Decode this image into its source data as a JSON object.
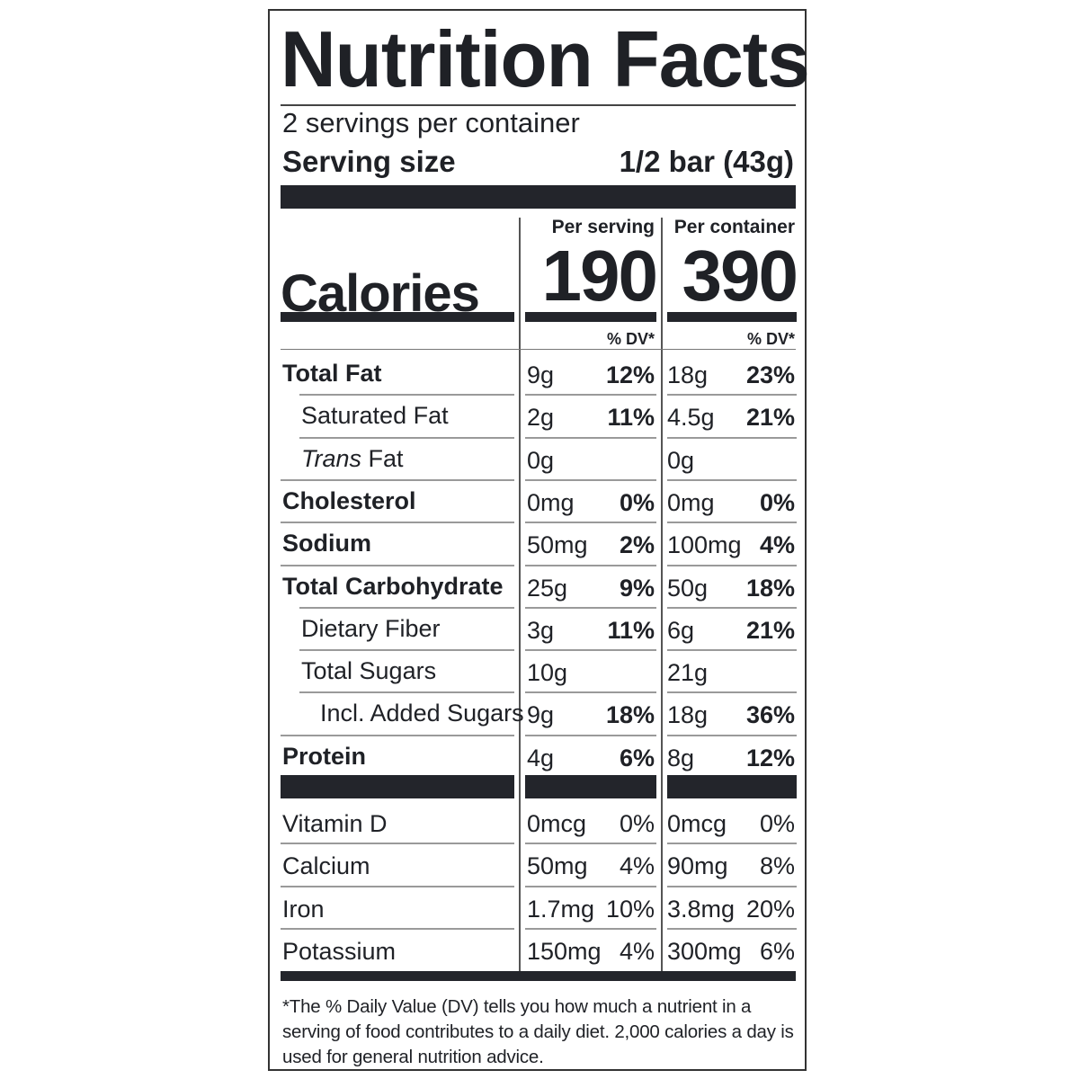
{
  "title": "Nutrition Facts",
  "servings_per_container": "2 servings per container",
  "serving_size_label": "Serving size",
  "serving_size_value": "1/2 bar (43g)",
  "columns": {
    "per_serving_label": "Per serving",
    "per_container_label": "Per container",
    "dv_label": "% DV*"
  },
  "calories": {
    "label": "Calories",
    "per_serving": "190",
    "per_container": "390"
  },
  "nutrients": [
    {
      "name": "Total Fat",
      "style": "bold",
      "indent": 0,
      "s_amt": "9g",
      "s_dv": "12%",
      "c_amt": "18g",
      "c_dv": "23%"
    },
    {
      "name": "Saturated Fat",
      "style": "normal",
      "indent": 1,
      "s_amt": "2g",
      "s_dv": "11%",
      "c_amt": "4.5g",
      "c_dv": "21%"
    },
    {
      "name_italic": "Trans",
      "name": " Fat",
      "style": "normal",
      "indent": 1,
      "s_amt": "0g",
      "s_dv": "",
      "c_amt": "0g",
      "c_dv": ""
    },
    {
      "name": "Cholesterol",
      "style": "bold",
      "indent": 0,
      "s_amt": "0mg",
      "s_dv": "0%",
      "c_amt": "0mg",
      "c_dv": "0%"
    },
    {
      "name": "Sodium",
      "style": "bold",
      "indent": 0,
      "s_amt": "50mg",
      "s_dv": "2%",
      "c_amt": "100mg",
      "c_dv": "4%"
    },
    {
      "name": "Total Carbohydrate",
      "style": "bold",
      "indent": 0,
      "s_amt": "25g",
      "s_dv": "9%",
      "c_amt": "50g",
      "c_dv": "18%"
    },
    {
      "name": "Dietary Fiber",
      "style": "normal",
      "indent": 1,
      "s_amt": "3g",
      "s_dv": "11%",
      "c_amt": "6g",
      "c_dv": "21%"
    },
    {
      "name": "Total Sugars",
      "style": "normal",
      "indent": 1,
      "s_amt": "10g",
      "s_dv": "",
      "c_amt": "21g",
      "c_dv": ""
    },
    {
      "name": "Incl. Added Sugars",
      "style": "normal",
      "indent": 2,
      "s_amt": "9g",
      "s_dv": "18%",
      "c_amt": "18g",
      "c_dv": "36%"
    },
    {
      "name": "Protein",
      "style": "bold",
      "indent": 0,
      "s_amt": "4g",
      "s_dv": "6%",
      "c_amt": "8g",
      "c_dv": "12%"
    }
  ],
  "vitamins": [
    {
      "name": "Vitamin D",
      "s_amt": "0mcg",
      "s_dv": "0%",
      "c_amt": "0mcg",
      "c_dv": "0%"
    },
    {
      "name": "Calcium",
      "s_amt": "50mg",
      "s_dv": "4%",
      "c_amt": "90mg",
      "c_dv": "8%"
    },
    {
      "name": "Iron",
      "s_amt": "1.7mg",
      "s_dv": "10%",
      "c_amt": "3.8mg",
      "c_dv": "20%"
    },
    {
      "name": "Potassium",
      "s_amt": "150mg",
      "s_dv": "4%",
      "c_amt": "300mg",
      "c_dv": "6%"
    }
  ],
  "footnote": "*The % Daily Value (DV) tells you how much a nutrient in a serving of food contributes to a daily diet. 2,000 calories a day is used for general nutrition advice."
}
